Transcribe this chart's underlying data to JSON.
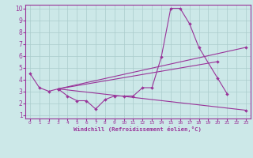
{
  "background_color": "#cce8e8",
  "grid_color": "#aacccc",
  "line_color": "#993399",
  "xlim": [
    -0.5,
    23.5
  ],
  "ylim": [
    0.7,
    10.3
  ],
  "xticks": [
    0,
    1,
    2,
    3,
    4,
    5,
    6,
    7,
    8,
    9,
    10,
    11,
    12,
    13,
    14,
    15,
    16,
    17,
    18,
    19,
    20,
    21,
    22,
    23
  ],
  "yticks": [
    1,
    2,
    3,
    4,
    5,
    6,
    7,
    8,
    9,
    10
  ],
  "xlabel": "Windchill (Refroidissement éolien,°C)",
  "series": [
    {
      "x": [
        0,
        1,
        2,
        3,
        4,
        5,
        6,
        7,
        8,
        9,
        10,
        11,
        12,
        13,
        14,
        15,
        16,
        17,
        18,
        20,
        21
      ],
      "y": [
        4.5,
        3.3,
        3.0,
        3.2,
        2.6,
        2.2,
        2.2,
        1.5,
        2.3,
        2.6,
        2.6,
        2.6,
        3.3,
        3.3,
        5.9,
        10.0,
        10.0,
        8.7,
        6.7,
        4.1,
        2.8
      ]
    },
    {
      "comment": "straight line from (3,3.2) to (23,6.7)",
      "x": [
        3,
        23
      ],
      "y": [
        3.2,
        6.7
      ]
    },
    {
      "comment": "straight line from (3,3.2) to (20,5.5)",
      "x": [
        3,
        20
      ],
      "y": [
        3.2,
        5.5
      ]
    },
    {
      "comment": "straight line from (3,3.2) to (23,1.4)",
      "x": [
        3,
        23
      ],
      "y": [
        3.2,
        1.4
      ]
    }
  ]
}
